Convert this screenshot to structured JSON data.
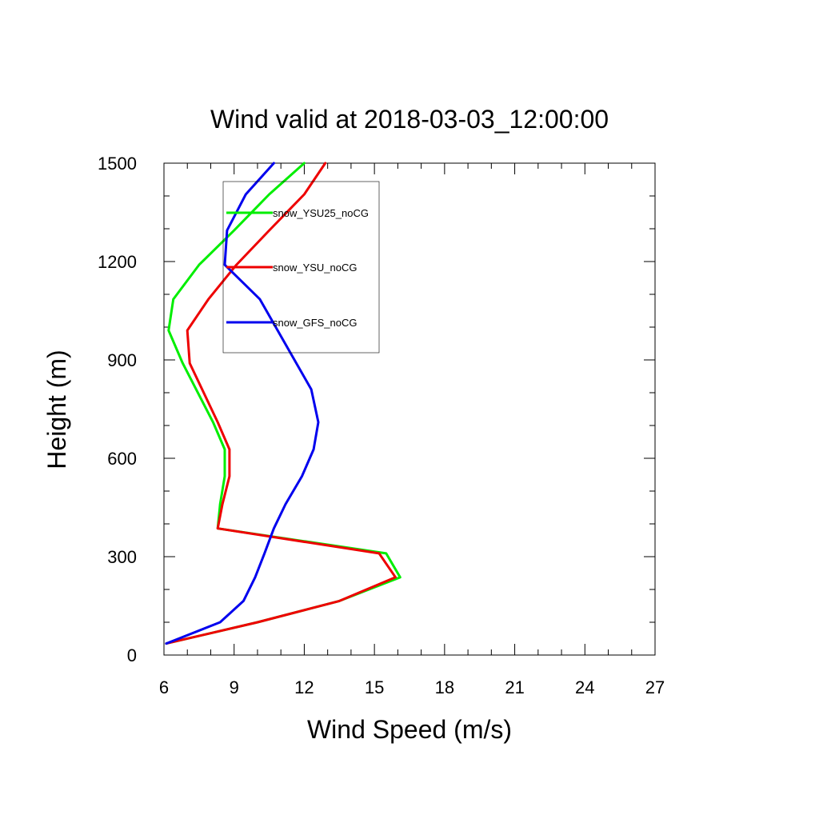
{
  "chart_data": {
    "type": "line",
    "title": "Wind valid at 2018-03-03_12:00:00",
    "xlabel": "Wind Speed (m/s)",
    "ylabel": "Height (m)",
    "xlim": [
      6,
      27
    ],
    "ylim": [
      0,
      1500
    ],
    "x_ticks": [
      6,
      9,
      12,
      15,
      18,
      21,
      24,
      27
    ],
    "y_ticks": [
      0,
      300,
      600,
      900,
      1200,
      1500
    ],
    "x_tick_labels": [
      "6",
      "9",
      "12",
      "15",
      "18",
      "21",
      "24",
      "27"
    ],
    "y_tick_labels": [
      "0",
      "300",
      "600",
      "900",
      "1200",
      "1500"
    ],
    "x_minor_step": 1,
    "y_minor_step": 100,
    "grid": false,
    "legend_position": "top-left inside",
    "series": [
      {
        "name": "snow_YSU25_noCG",
        "color": "#00ee00",
        "points": [
          [
            6.1,
            35
          ],
          [
            10.0,
            100
          ],
          [
            13.5,
            165
          ],
          [
            16.1,
            237
          ],
          [
            15.5,
            310
          ],
          [
            8.3,
            386
          ],
          [
            8.4,
            460
          ],
          [
            8.6,
            545
          ],
          [
            8.6,
            627
          ],
          [
            8.1,
            710
          ],
          [
            6.8,
            890
          ],
          [
            6.2,
            990
          ],
          [
            6.4,
            1085
          ],
          [
            7.5,
            1190
          ],
          [
            9.0,
            1295
          ],
          [
            10.5,
            1405
          ],
          [
            12.0,
            1500
          ]
        ]
      },
      {
        "name": "snow_YSU_noCG",
        "color": "#ee0000",
        "points": [
          [
            6.1,
            35
          ],
          [
            10.0,
            100
          ],
          [
            13.5,
            165
          ],
          [
            15.9,
            237
          ],
          [
            15.2,
            310
          ],
          [
            8.3,
            386
          ],
          [
            8.5,
            460
          ],
          [
            8.8,
            545
          ],
          [
            8.8,
            627
          ],
          [
            8.3,
            710
          ],
          [
            7.1,
            890
          ],
          [
            7.0,
            990
          ],
          [
            7.9,
            1085
          ],
          [
            9.1,
            1190
          ],
          [
            10.5,
            1295
          ],
          [
            12.0,
            1405
          ],
          [
            12.9,
            1500
          ]
        ]
      },
      {
        "name": "snow_GFS_noCG",
        "color": "#0000ee",
        "points": [
          [
            6.1,
            35
          ],
          [
            8.4,
            100
          ],
          [
            9.4,
            165
          ],
          [
            9.9,
            237
          ],
          [
            10.3,
            310
          ],
          [
            10.7,
            386
          ],
          [
            11.2,
            460
          ],
          [
            11.9,
            545
          ],
          [
            12.4,
            627
          ],
          [
            12.6,
            710
          ],
          [
            12.3,
            810
          ],
          [
            11.5,
            910
          ],
          [
            10.1,
            1085
          ],
          [
            8.6,
            1190
          ],
          [
            8.7,
            1295
          ],
          [
            9.5,
            1405
          ],
          [
            10.7,
            1500
          ]
        ]
      }
    ]
  }
}
